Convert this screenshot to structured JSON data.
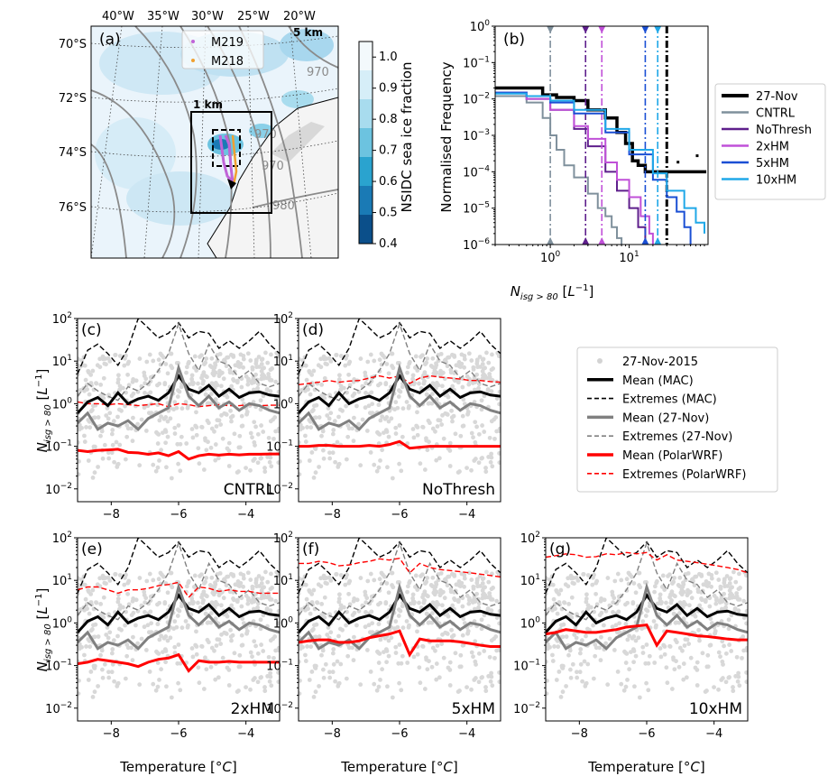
{
  "chart_data": [
    {
      "id": "a",
      "type": "map",
      "panel_label": "(a)",
      "lon_ticks": [
        "40°W",
        "35°W",
        "30°W",
        "25°W",
        "20°W"
      ],
      "lat_ticks": [
        "70°S",
        "72°S",
        "74°S",
        "76°S"
      ],
      "legend": [
        {
          "name": "M219",
          "color": "#c064d8"
        },
        {
          "name": "M218",
          "color": "#f0a030"
        }
      ],
      "domain_labels": [
        "5 km",
        "1 km"
      ],
      "contour_labels": [
        "970",
        "970",
        "970",
        "980"
      ],
      "colorbar": {
        "label": "NSIDC sea ice fraction",
        "ticks": [
          0.4,
          0.5,
          0.6,
          0.7,
          0.8,
          0.9,
          1.0
        ],
        "range": [
          0.4,
          1.05
        ],
        "colors": [
          "#0b4f8a",
          "#1a7ab5",
          "#2aa3cf",
          "#6cc3e0",
          "#a8dcee",
          "#d6eef8",
          "#f3f9fc"
        ]
      }
    },
    {
      "id": "b",
      "type": "line",
      "panel_label": "(b)",
      "xlabel": "N_isg>80 [L^-1]",
      "ylabel": "Normalised Frequency",
      "xscale": "log",
      "yscale": "log",
      "xlim": [
        0.2,
        100
      ],
      "ylim": [
        1e-06,
        1
      ],
      "x_ticks": [
        "10^0",
        "10^1"
      ],
      "y_ticks": [
        "10^-6",
        "10^-5",
        "10^-4",
        "10^-3",
        "10^-2",
        "10^-1",
        "10^0"
      ],
      "legend_position": "right",
      "series": [
        {
          "name": "27-Nov",
          "color": "#000000",
          "width": 3.5,
          "mean": 30,
          "x": [
            0.2,
            0.55,
            0.8,
            1.2,
            2,
            3,
            5,
            7,
            9,
            11,
            13,
            16,
            30,
            95
          ],
          "y": [
            0.02,
            0.02,
            0.013,
            0.011,
            0.009,
            0.005,
            0.003,
            0.0012,
            0.0006,
            0.0002,
            0.00015,
            0.0001,
            0.0001,
            0.0001
          ]
        },
        {
          "name": "CNTRL",
          "color": "#7f909c",
          "width": 2,
          "mean": 1.0,
          "x": [
            0.2,
            0.5,
            0.8,
            1.0,
            1.2,
            1.5,
            2,
            3,
            4,
            5,
            6,
            7,
            8
          ],
          "y": [
            0.012,
            0.008,
            0.003,
            0.001,
            0.0004,
            0.00015,
            7e-05,
            2.5e-05,
            1e-05,
            6e-06,
            3e-06,
            1.5e-06,
            1e-06
          ]
        },
        {
          "name": "NoThresh",
          "color": "#5e1f8c",
          "width": 2,
          "mean": 2.8,
          "x": [
            0.2,
            0.5,
            1,
            2,
            3,
            5,
            7,
            10,
            13,
            16
          ],
          "y": [
            0.015,
            0.01,
            0.005,
            0.0015,
            0.0005,
            0.0001,
            3e-05,
            1e-05,
            3e-06,
            1e-06
          ]
        },
        {
          "name": "2xHM",
          "color": "#c050d8",
          "width": 2,
          "mean": 4.5,
          "x": [
            0.2,
            0.5,
            1,
            2,
            3,
            5,
            7,
            10,
            14,
            18,
            20
          ],
          "y": [
            0.015,
            0.01,
            0.005,
            0.0018,
            0.0008,
            0.00018,
            6e-05,
            2e-05,
            6e-06,
            2e-06,
            1e-06
          ]
        },
        {
          "name": "5xHM",
          "color": "#1a4fd4",
          "width": 2,
          "mean": 16,
          "x": [
            0.2,
            0.5,
            1,
            2,
            5,
            10,
            20,
            30,
            40,
            50,
            60
          ],
          "y": [
            0.015,
            0.012,
            0.008,
            0.004,
            0.0012,
            0.0003,
            6e-05,
            2e-05,
            8e-06,
            3e-06,
            1e-06
          ]
        },
        {
          "name": "10xHM",
          "color": "#20a8e8",
          "width": 2,
          "mean": 23,
          "x": [
            0.2,
            0.5,
            1,
            2,
            5,
            10,
            20,
            30,
            50,
            70,
            90
          ],
          "y": [
            0.014,
            0.012,
            0.009,
            0.005,
            0.0015,
            0.0004,
            9e-05,
            3e-05,
            1e-05,
            4e-06,
            2e-06
          ]
        }
      ]
    },
    {
      "type": "line",
      "xlabel": "Temperature [^oC]",
      "ylabel": "N_isg>80 [L^-1]",
      "xlim": [
        -9,
        -3
      ],
      "ylim": [
        0.005,
        100
      ],
      "yscale": "log",
      "x_ticks": [
        -8,
        -6,
        -4
      ],
      "y_ticks": [
        "10^-2",
        "10^-1",
        "10^0",
        "10^1",
        "10^2"
      ],
      "x": [
        -9,
        -8.7,
        -8.4,
        -8.1,
        -7.8,
        -7.5,
        -7.2,
        -6.9,
        -6.6,
        -6.3,
        -6.0,
        -5.7,
        -5.4,
        -5.1,
        -4.8,
        -4.5,
        -4.2,
        -3.9,
        -3.6,
        -3.3,
        -3.0
      ],
      "mac_mean": [
        0.6,
        1.1,
        1.4,
        0.9,
        1.8,
        1.0,
        1.3,
        1.5,
        1.2,
        1.8,
        4.5,
        2.2,
        1.8,
        2.7,
        1.5,
        2.2,
        1.4,
        1.8,
        1.9,
        1.6,
        1.5
      ],
      "mac_extremes": [
        5,
        18,
        25,
        15,
        8,
        20,
        100,
        60,
        35,
        45,
        80,
        35,
        50,
        45,
        20,
        30,
        20,
        30,
        50,
        25,
        15
      ],
      "nov_mean": [
        0.35,
        0.6,
        0.25,
        0.35,
        0.3,
        0.4,
        0.25,
        0.45,
        0.6,
        0.8,
        7,
        1.5,
        0.9,
        1.5,
        0.8,
        1.1,
        0.7,
        1.0,
        0.9,
        0.7,
        0.6
      ],
      "nov_extremes": [
        1.5,
        3,
        2,
        1.5,
        1.2,
        2.5,
        2,
        3,
        6,
        15,
        75,
        15,
        6,
        25,
        10,
        8,
        4,
        6,
        3,
        2.5,
        3
      ],
      "panels": [
        {
          "id": "c",
          "panel_label": "(c)",
          "name": "CNTRL",
          "wrf_mean": [
            0.08,
            0.075,
            0.08,
            0.082,
            0.085,
            0.072,
            0.07,
            0.065,
            0.07,
            0.06,
            0.075,
            0.05,
            0.06,
            0.065,
            0.062,
            0.065,
            0.063,
            0.065,
            0.065,
            0.066,
            0.066
          ],
          "wrf_extremes": [
            1.1,
            1.0,
            1.0,
            0.95,
            1.0,
            0.95,
            0.9,
            0.95,
            1.0,
            0.85,
            1.0,
            0.95,
            0.85,
            0.9,
            0.95,
            0.9,
            0.9,
            0.95,
            0.9,
            0.92,
            0.92
          ]
        },
        {
          "id": "d",
          "panel_label": "(d)",
          "name": "NoThresh",
          "wrf_mean": [
            0.1,
            0.1,
            0.105,
            0.105,
            0.1,
            0.1,
            0.1,
            0.105,
            0.1,
            0.11,
            0.13,
            0.09,
            0.095,
            0.1,
            0.1,
            0.1,
            0.1,
            0.1,
            0.1,
            0.1,
            0.1
          ],
          "wrf_extremes": [
            2.8,
            3.0,
            3.2,
            3.5,
            3.2,
            3.4,
            3.5,
            4,
            4.5,
            4,
            4.5,
            3.0,
            4,
            4.5,
            4.2,
            4,
            3.8,
            3.5,
            3.5,
            3.3,
            3.2
          ]
        },
        {
          "id": "e",
          "panel_label": "(e)",
          "name": "2xHM",
          "wrf_mean": [
            0.11,
            0.12,
            0.14,
            0.13,
            0.12,
            0.11,
            0.095,
            0.12,
            0.14,
            0.15,
            0.18,
            0.075,
            0.13,
            0.12,
            0.12,
            0.125,
            0.12,
            0.12,
            0.12,
            0.12,
            0.12
          ],
          "wrf_extremes": [
            6,
            7,
            7,
            6,
            5,
            6,
            6,
            6.5,
            7.5,
            8,
            9,
            4,
            7,
            6.5,
            5.5,
            6,
            5.5,
            5.5,
            5,
            5,
            5
          ]
        },
        {
          "id": "f",
          "panel_label": "(f)",
          "name": "5xHM",
          "wrf_mean": [
            0.35,
            0.38,
            0.4,
            0.4,
            0.35,
            0.35,
            0.38,
            0.45,
            0.5,
            0.55,
            0.65,
            0.18,
            0.42,
            0.38,
            0.38,
            0.38,
            0.36,
            0.33,
            0.3,
            0.28,
            0.28
          ],
          "wrf_extremes": [
            25,
            25,
            28,
            26,
            22,
            23,
            26,
            28,
            32,
            30,
            33,
            15,
            25,
            20,
            18,
            17,
            16,
            15,
            14,
            13,
            12
          ]
        },
        {
          "id": "g",
          "panel_label": "(g)",
          "name": "10xHM",
          "wrf_mean": [
            0.55,
            0.6,
            0.7,
            0.65,
            0.6,
            0.6,
            0.65,
            0.7,
            0.8,
            0.85,
            0.9,
            0.3,
            0.65,
            0.6,
            0.55,
            0.5,
            0.48,
            0.45,
            0.42,
            0.4,
            0.4
          ],
          "wrf_extremes": [
            35,
            38,
            42,
            40,
            35,
            36,
            42,
            40,
            45,
            42,
            45,
            30,
            40,
            30,
            28,
            26,
            24,
            22,
            20,
            18,
            15
          ]
        }
      ],
      "legend": [
        {
          "name": "27-Nov-2015",
          "style": "dot",
          "color": "#d3d3d3"
        },
        {
          "name": "Mean (MAC)",
          "style": "solid",
          "color": "#000000"
        },
        {
          "name": "Extremes (MAC)",
          "style": "dashed",
          "color": "#000000"
        },
        {
          "name": "Mean (27-Nov)",
          "style": "solid",
          "color": "#808080"
        },
        {
          "name": "Extremes (27-Nov)",
          "style": "dashed",
          "color": "#808080"
        },
        {
          "name": "Mean (PolarWRF)",
          "style": "solid",
          "color": "#ff0000"
        },
        {
          "name": "Extremes (PolarWRF)",
          "style": "dashed",
          "color": "#ff0000"
        }
      ]
    }
  ]
}
